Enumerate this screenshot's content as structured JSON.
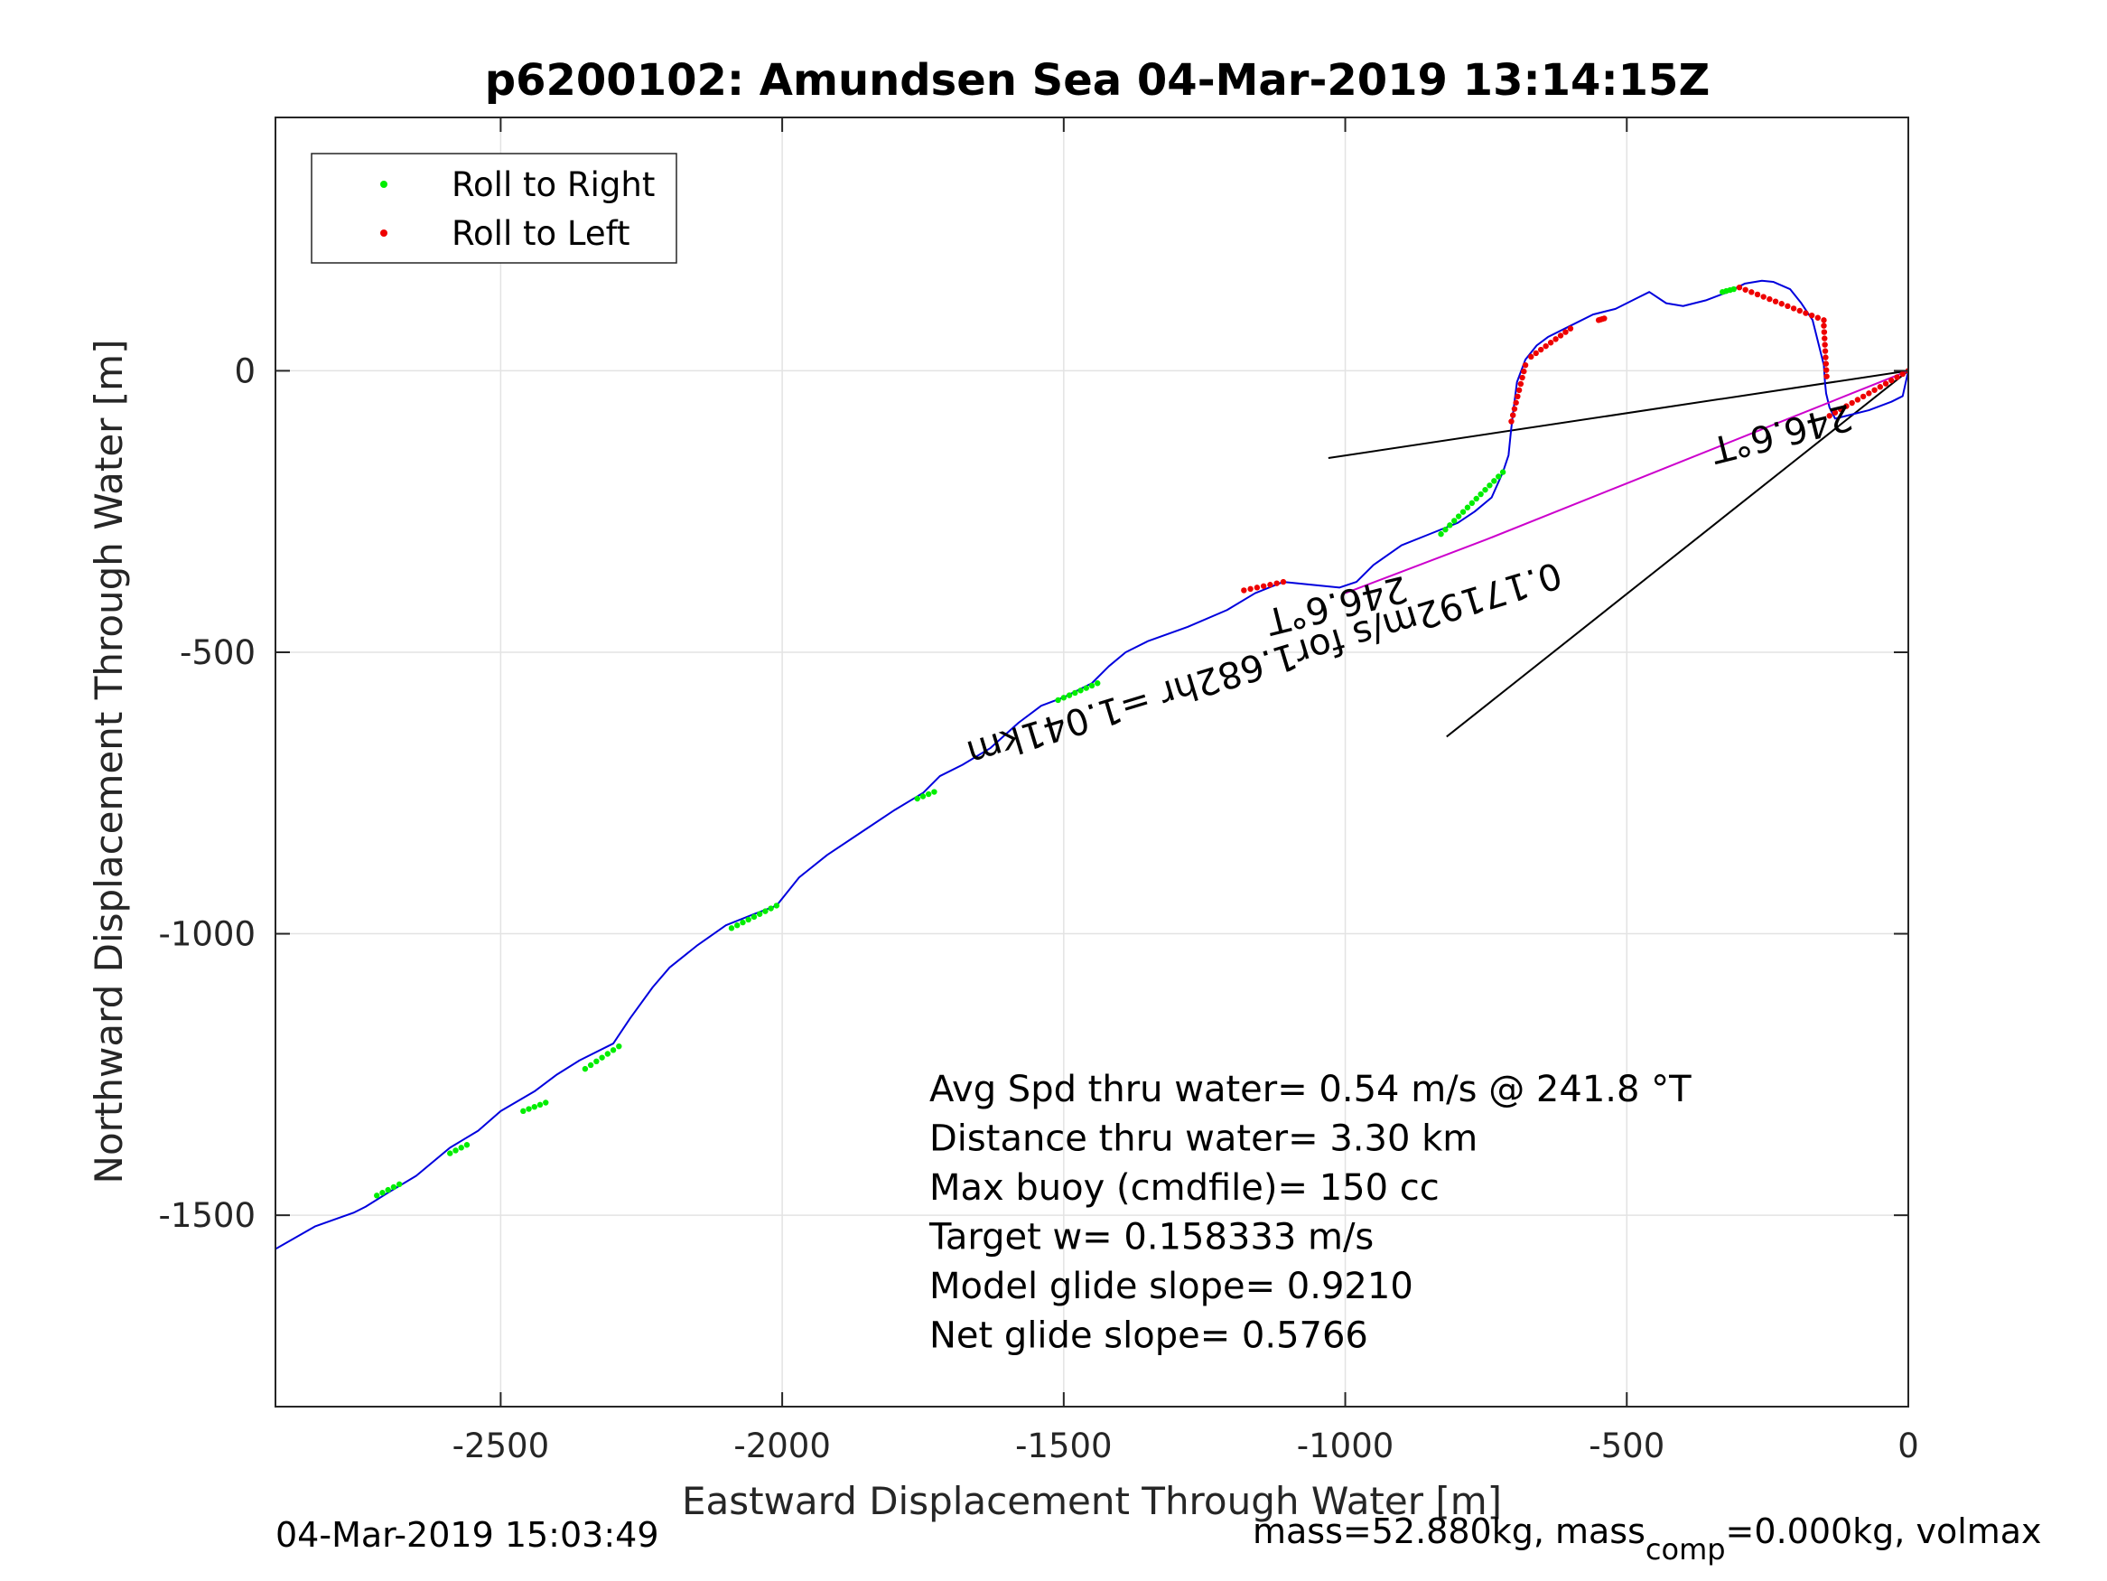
{
  "chart_data": {
    "type": "line",
    "title": "p6200102: Amundsen Sea 04-Mar-2019 13:14:15Z",
    "xlabel": "Eastward Displacement Through Water [m]",
    "ylabel": "Northward Displacement Through Water [m]",
    "xlim": [
      -2900,
      0
    ],
    "ylim": [
      -1840,
      450
    ],
    "xticks": [
      -2500,
      -2000,
      -1500,
      -1000,
      -500,
      0
    ],
    "yticks": [
      -1500,
      -1000,
      -500,
      0
    ],
    "xtick_labels": [
      "-2500",
      "-2000",
      "-1500",
      "-1000",
      "-500",
      "0"
    ],
    "ytick_labels": [
      "-1500",
      "-1000",
      "-500",
      "0"
    ],
    "grid": true,
    "legend": {
      "placement": "top-left",
      "entries": [
        {
          "label": "Roll to Right",
          "color": "#00ee00"
        },
        {
          "label": "Roll to Left",
          "color": "#ee0000"
        }
      ]
    },
    "series": [
      {
        "color": "#0000dd",
        "x": [
          -2900,
          -2830,
          -2760,
          -2740,
          -2700,
          -2650,
          -2590,
          -2540,
          -2500,
          -2440,
          -2400,
          -2360,
          -2300,
          -2270,
          -2230,
          -2200,
          -2150,
          -2100,
          -2050,
          -2010,
          -1970,
          -1920,
          -1860,
          -1800,
          -1750,
          -1720,
          -1680,
          -1630,
          -1580,
          -1540,
          -1500,
          -1450,
          -1420,
          -1390,
          -1350,
          -1280,
          -1210,
          -1160,
          -1110,
          -1060,
          -1010,
          -980,
          -950,
          -900,
          -850,
          -800,
          -770,
          -740,
          -720,
          -710,
          -706,
          -702,
          -695,
          -680,
          -660,
          -640,
          -600,
          -560,
          -520,
          -480,
          -460,
          -430,
          -400,
          -360,
          -320,
          -290,
          -260,
          -240,
          -210,
          -190,
          -170,
          -160,
          -150,
          -148,
          -146,
          -140,
          -130,
          -110,
          -70,
          -30,
          -10,
          0
        ],
        "y": [
          -1560,
          -1520,
          -1495,
          -1485,
          -1460,
          -1430,
          -1380,
          -1350,
          -1315,
          -1280,
          -1250,
          -1225,
          -1195,
          -1150,
          -1095,
          -1060,
          -1020,
          -985,
          -965,
          -950,
          -900,
          -860,
          -820,
          -780,
          -750,
          -720,
          -700,
          -670,
          -625,
          -595,
          -580,
          -555,
          -525,
          -500,
          -480,
          -455,
          -425,
          -395,
          -375,
          -380,
          -385,
          -375,
          -345,
          -310,
          -290,
          -270,
          -250,
          -225,
          -180,
          -150,
          -110,
          -75,
          -20,
          20,
          45,
          60,
          80,
          100,
          110,
          130,
          140,
          120,
          115,
          125,
          140,
          155,
          160,
          158,
          145,
          120,
          90,
          50,
          10,
          -20,
          -40,
          -65,
          -85,
          -80,
          -70,
          -55,
          -45,
          0
        ]
      },
      {
        "color": "#cc00cc",
        "x": [
          -1000,
          -750,
          -500,
          -250,
          -100,
          -30,
          0
        ],
        "y": [
          -395,
          -300,
          -200,
          -100,
          -40,
          -12,
          0
        ]
      }
    ],
    "roll_to_right_segments": [
      {
        "x": [
          -2720,
          -2680
        ],
        "y": [
          -1465,
          -1445
        ]
      },
      {
        "x": [
          -2590,
          -2560
        ],
        "y": [
          -1390,
          -1375
        ]
      },
      {
        "x": [
          -2460,
          -2420
        ],
        "y": [
          -1315,
          -1300
        ]
      },
      {
        "x": [
          -2350,
          -2290
        ],
        "y": [
          -1240,
          -1200
        ]
      },
      {
        "x": [
          -2090,
          -2010
        ],
        "y": [
          -990,
          -950
        ]
      },
      {
        "x": [
          -1760,
          -1730
        ],
        "y": [
          -760,
          -748
        ]
      },
      {
        "x": [
          -1510,
          -1440
        ],
        "y": [
          -585,
          -555
        ]
      },
      {
        "x": [
          -830,
          -720
        ],
        "y": [
          -290,
          -180
        ]
      },
      {
        "x": [
          -330,
          -310
        ],
        "y": [
          140,
          145
        ]
      }
    ],
    "roll_to_left_segments": [
      {
        "x": [
          -1180,
          -1110
        ],
        "y": [
          -390,
          -375
        ]
      },
      {
        "x": [
          -705,
          -680
        ],
        "y": [
          -90,
          10
        ]
      },
      {
        "x": [
          -670,
          -600
        ],
        "y": [
          25,
          75
        ]
      },
      {
        "x": [
          -550,
          -540
        ],
        "y": [
          90,
          93
        ]
      },
      {
        "x": [
          -300,
          -150
        ],
        "y": [
          148,
          90
        ]
      },
      {
        "x": [
          -150,
          -145
        ],
        "y": [
          80,
          -10
        ]
      },
      {
        "x": [
          -140,
          0
        ],
        "y": [
          -80,
          0
        ]
      }
    ],
    "reference_lines": [
      {
        "x": [
          0,
          -1030
        ],
        "y": [
          0,
          -155
        ]
      },
      {
        "x": [
          0,
          -820
        ],
        "y": [
          0,
          -650
        ]
      }
    ],
    "annotations": [
      {
        "text": "246.6°T",
        "x": -1020,
        "y": -395
      },
      {
        "text": "0.17192m/s for1.682hr =1.041km",
        "x": -1150,
        "y": -500
      },
      {
        "text": "246.6°T",
        "x": -230,
        "y": -90
      }
    ],
    "stats": [
      "Avg Spd thru water=  0.54 m/s @ 241.8 °T",
      "Distance thru water=  3.30 km",
      "Max buoy (cmdfile)= 150 cc",
      "Target w= 0.158333 m/s",
      "Model glide slope= 0.9210",
      "Net glide slope= 0.5766"
    ]
  },
  "footer": {
    "left": "04-Mar-2019 15:03:49",
    "right_prefix": "mass=52.880kg, mass",
    "right_sub": "comp",
    "right_suffix": "=0.000kg, volmax"
  }
}
